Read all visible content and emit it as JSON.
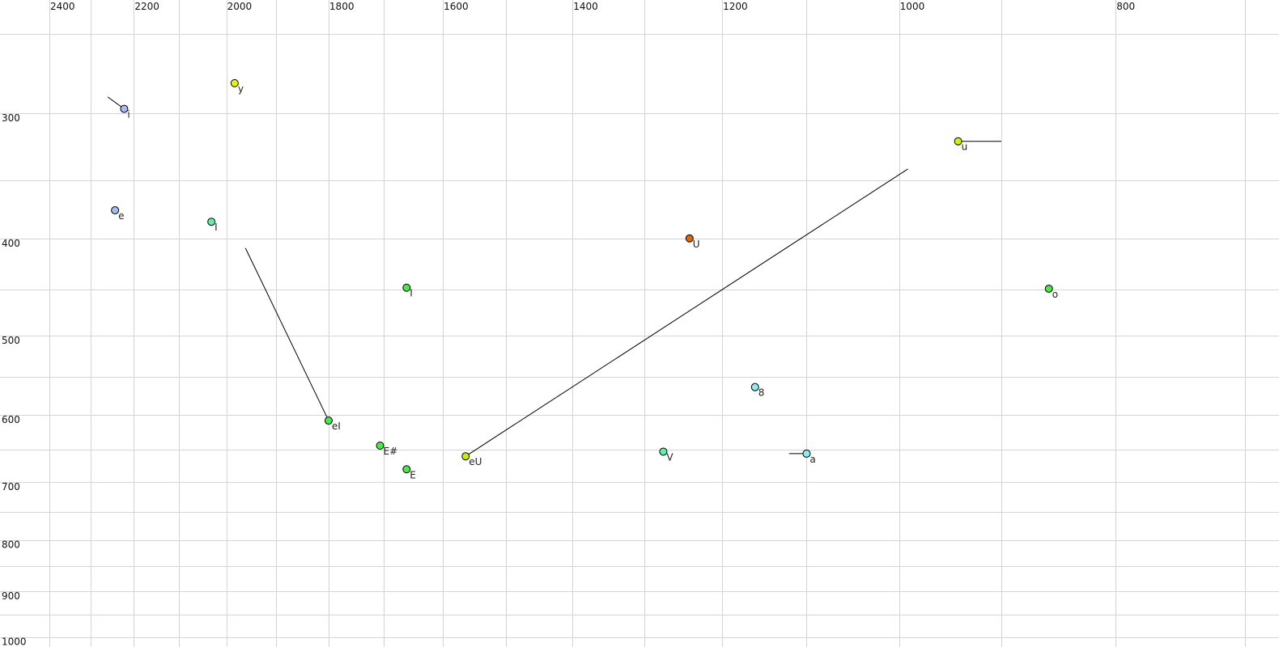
{
  "chart_data": {
    "type": "scatter",
    "title": "",
    "xlabel": "",
    "ylabel": "",
    "x_scale": "log",
    "y_scale": "log",
    "x_reversed": true,
    "x_axis_position": "top",
    "xlim": [
      2400,
      676
    ],
    "ylim": [
      250,
      1023
    ],
    "grid": true,
    "x_grid": [
      2400,
      2300,
      2200,
      2100,
      2000,
      1900,
      1800,
      1700,
      1600,
      1500,
      1400,
      1300,
      1200,
      1100,
      1000,
      900,
      800,
      700
    ],
    "y_grid": [
      250,
      300,
      350,
      400,
      450,
      500,
      550,
      600,
      650,
      700,
      750,
      800,
      850,
      900,
      950,
      1000
    ],
    "x_tick_labels": [
      "2400",
      "2200",
      "2000",
      "1800",
      "1600",
      "1400",
      "1200",
      "1000",
      "800"
    ],
    "y_tick_labels": [
      "300",
      "400",
      "500",
      "600",
      "700",
      "800",
      "900",
      "1000"
    ],
    "points": [
      {
        "label": "i",
        "x": 2222,
        "y": 297,
        "color": "#a4bdf2",
        "trajectory_from": [
          2260,
          289
        ]
      },
      {
        "label": "y",
        "x": 1983,
        "y": 280,
        "color": "#e2f400"
      },
      {
        "label": "e",
        "x": 2243,
        "y": 375,
        "color": "#a4bdf2"
      },
      {
        "label": "I",
        "x": 2031,
        "y": 385,
        "color": "#5cf2a6"
      },
      {
        "label": "I",
        "x": 1661,
        "y": 448,
        "color": "#46e84a"
      },
      {
        "label": "eI",
        "x": 1800,
        "y": 608,
        "color": "#46e84a",
        "trajectory_from": [
          1961,
          409
        ]
      },
      {
        "label": "E#",
        "x": 1707,
        "y": 644,
        "color": "#46e84a"
      },
      {
        "label": "E",
        "x": 1661,
        "y": 680,
        "color": "#46e84a"
      },
      {
        "label": "eU",
        "x": 1563,
        "y": 660,
        "color": "#c6f000",
        "trajectory_from": [
          991,
          341
        ]
      },
      {
        "label": "U",
        "x": 1241,
        "y": 400,
        "color": "#e0640c"
      },
      {
        "label": "V",
        "x": 1275,
        "y": 653,
        "color": "#5cf2a6"
      },
      {
        "label": "8",
        "x": 1160,
        "y": 563,
        "color": "#86f0f4"
      },
      {
        "label": "a",
        "x": 1100,
        "y": 656,
        "color": "#86f0f4",
        "trajectory_from": [
          1120,
          656
        ]
      },
      {
        "label": "u",
        "x": 941,
        "y": 320,
        "color": "#d2f000",
        "trajectory_from": [
          900,
          320
        ]
      },
      {
        "label": "o",
        "x": 857,
        "y": 449,
        "color": "#46e84a"
      }
    ]
  }
}
